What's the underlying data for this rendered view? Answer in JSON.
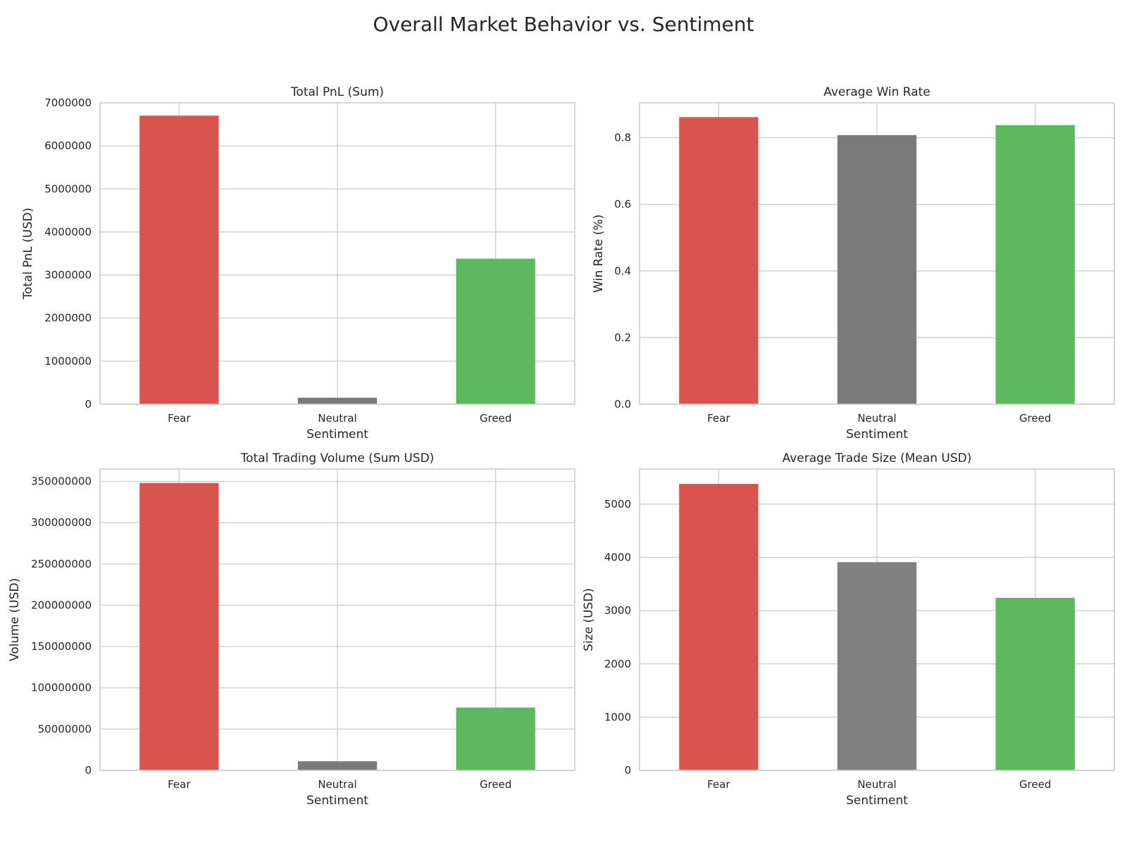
{
  "figure_title": "Overall Market Behavior vs. Sentiment",
  "chart_data": [
    {
      "type": "bar",
      "title": "Total PnL (Sum)",
      "xlabel": "Sentiment",
      "ylabel": "Total PnL (USD)",
      "categories": [
        "Fear",
        "Neutral",
        "Greed"
      ],
      "values": [
        6700000,
        150000,
        3380000
      ],
      "colors": [
        "#d9534f",
        "#7a7a7a",
        "#5cb85c"
      ],
      "ylim": [
        0,
        7000000
      ],
      "yticks": [
        0,
        1000000,
        2000000,
        3000000,
        4000000,
        5000000,
        6000000,
        7000000
      ],
      "ytick_labels": [
        "0",
        "1000000",
        "2000000",
        "3000000",
        "4000000",
        "5000000",
        "6000000",
        "7000000"
      ],
      "grid": true
    },
    {
      "type": "bar",
      "title": "Average Win Rate",
      "xlabel": "Sentiment",
      "ylabel": "Win Rate (%)",
      "categories": [
        "Fear",
        "Neutral",
        "Greed"
      ],
      "values": [
        0.862,
        0.808,
        0.838
      ],
      "colors": [
        "#d9534f",
        "#7a7a7a",
        "#5cb85c"
      ],
      "ylim": [
        0,
        0.905
      ],
      "yticks": [
        0,
        0.2,
        0.4,
        0.6,
        0.8
      ],
      "ytick_labels": [
        "0.0",
        "0.2",
        "0.4",
        "0.6",
        "0.8"
      ],
      "grid": true
    },
    {
      "type": "bar",
      "title": "Total Trading Volume (Sum USD)",
      "xlabel": "Sentiment",
      "ylabel": "Volume (USD)",
      "categories": [
        "Fear",
        "Neutral",
        "Greed"
      ],
      "values": [
        348000000,
        11000000,
        76000000
      ],
      "colors": [
        "#d9534f",
        "#7a7a7a",
        "#5cb85c"
      ],
      "ylim": [
        0,
        365000000
      ],
      "yticks": [
        0,
        50000000,
        100000000,
        150000000,
        200000000,
        250000000,
        300000000,
        350000000
      ],
      "ytick_labels": [
        "0",
        "50000000",
        "100000000",
        "150000000",
        "200000000",
        "250000000",
        "300000000",
        "350000000"
      ],
      "grid": true
    },
    {
      "type": "bar",
      "title": "Average Trade Size (Mean USD)",
      "xlabel": "Sentiment",
      "ylabel": "Size (USD)",
      "categories": [
        "Fear",
        "Neutral",
        "Greed"
      ],
      "values": [
        5380,
        3910,
        3240
      ],
      "colors": [
        "#d9534f",
        "#808080",
        "#5cb85c"
      ],
      "ylim": [
        0,
        5660
      ],
      "yticks": [
        0,
        1000,
        2000,
        3000,
        4000,
        5000
      ],
      "ytick_labels": [
        "0",
        "1000",
        "2000",
        "3000",
        "4000",
        "5000"
      ],
      "grid": true
    }
  ]
}
